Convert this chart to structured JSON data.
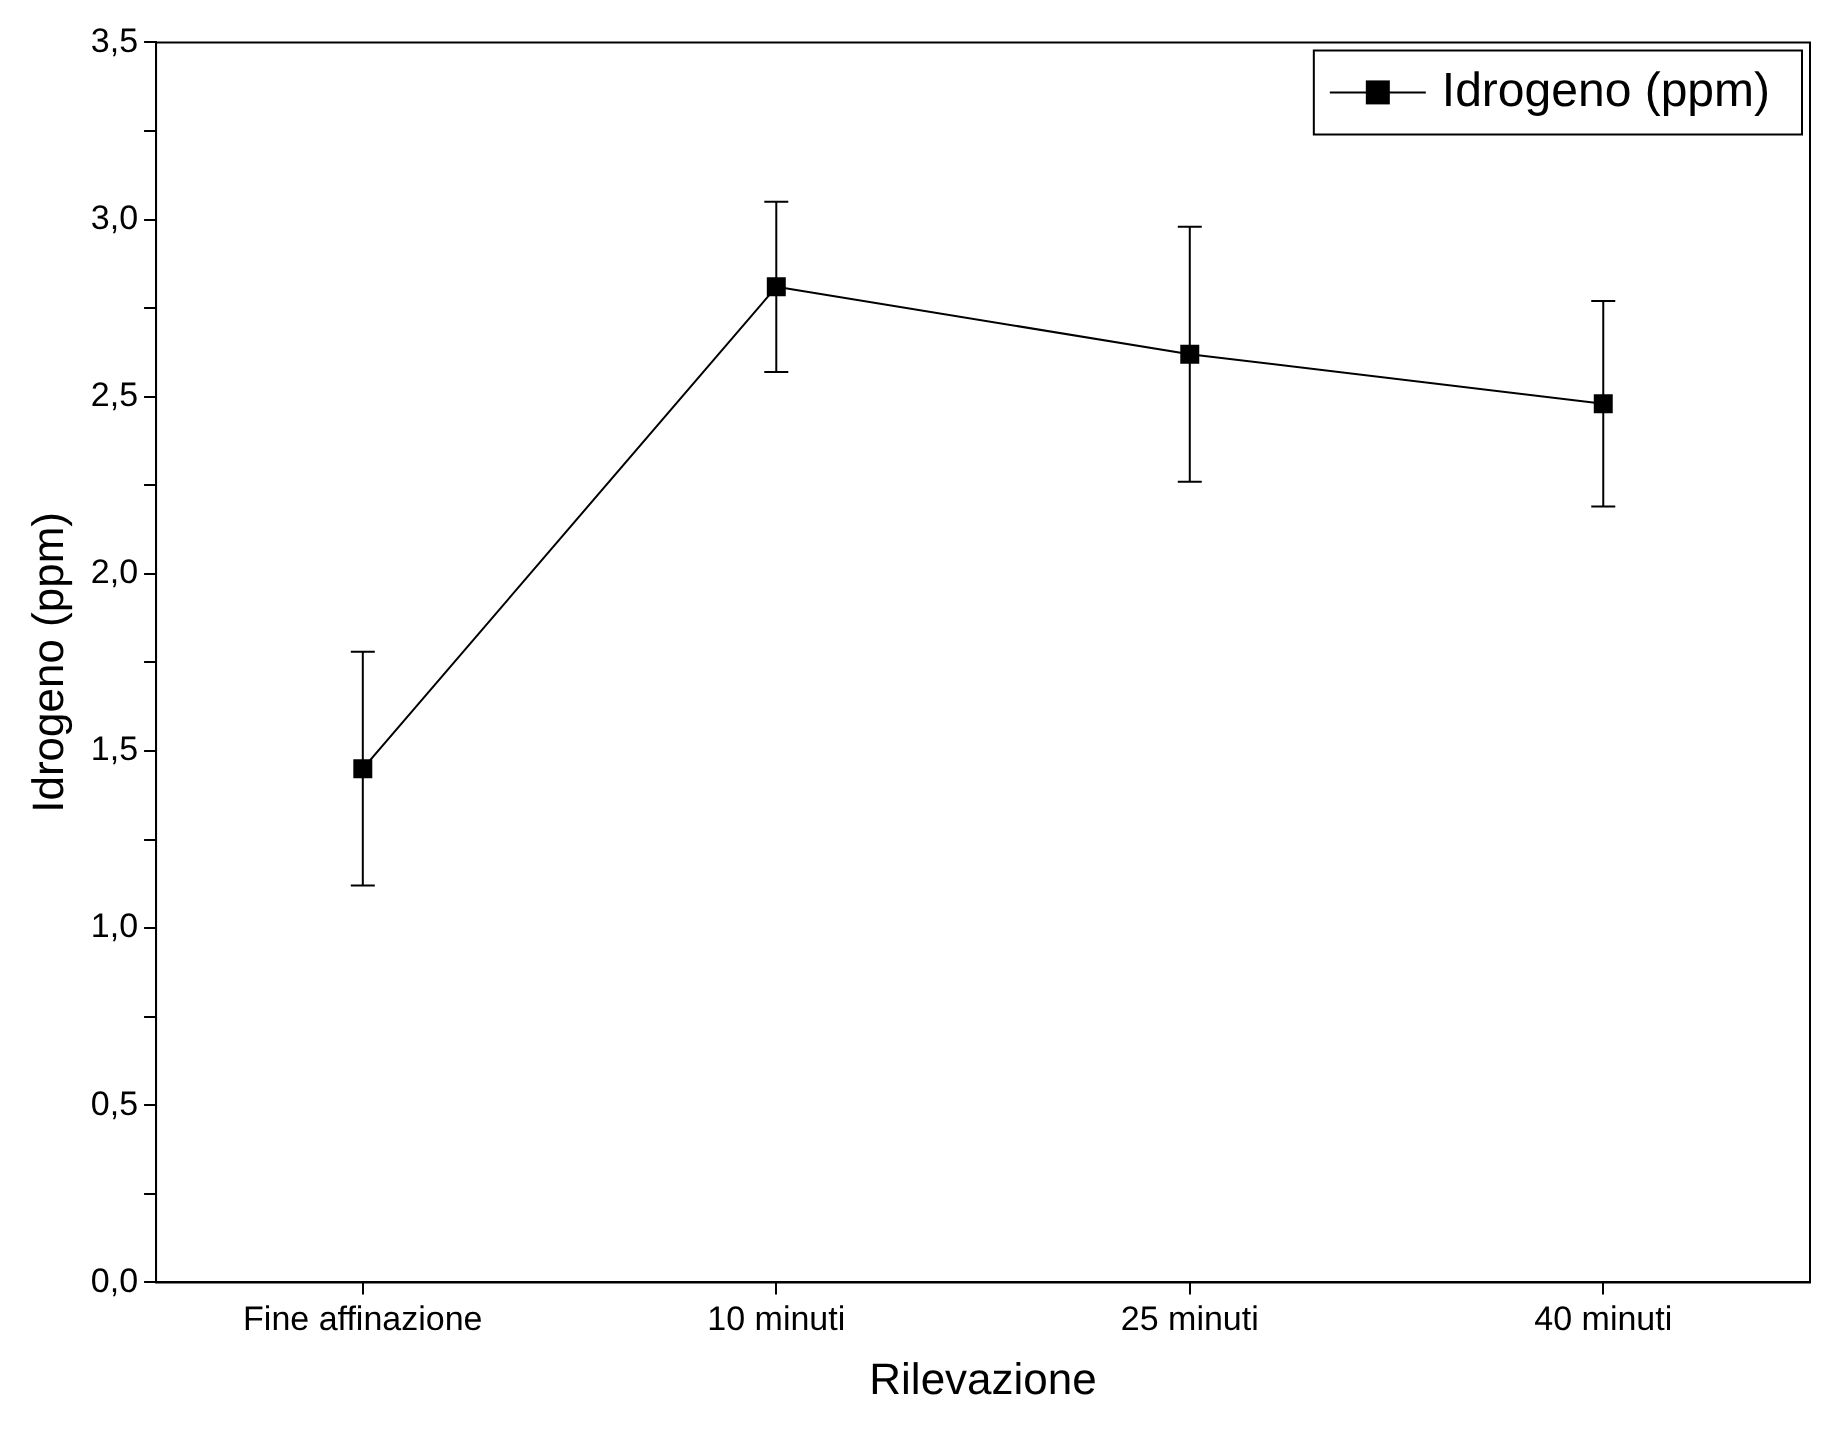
{
  "chart_data": {
    "type": "line",
    "xlabel": "Rilevazione",
    "ylabel": "Idrogeno (ppm)",
    "categories": [
      "Fine affinazione",
      "10 minuti",
      "25 minuti",
      "40 minuti"
    ],
    "series": [
      {
        "name": "Idrogeno (ppm)",
        "color": "#000000",
        "values": [
          1.45,
          2.81,
          2.62,
          2.48
        ],
        "errors": [
          0.33,
          0.24,
          0.36,
          0.29
        ]
      }
    ],
    "ylim": [
      0,
      3.5
    ],
    "yticks": [
      {
        "value": 0,
        "label": "0,0"
      },
      {
        "value": 0.25,
        "label": null
      },
      {
        "value": 0.5,
        "label": "0,5"
      },
      {
        "value": 0.75,
        "label": null
      },
      {
        "value": 1,
        "label": "1,0"
      },
      {
        "value": 1.25,
        "label": null
      },
      {
        "value": 1.5,
        "label": "1,5"
      },
      {
        "value": 1.75,
        "label": null
      },
      {
        "value": 2,
        "label": "2,0"
      },
      {
        "value": 2.25,
        "label": null
      },
      {
        "value": 2.5,
        "label": "2,5"
      },
      {
        "value": 2.75,
        "label": null
      },
      {
        "value": 3,
        "label": "3,0"
      },
      {
        "value": 3.25,
        "label": null
      },
      {
        "value": 3.5,
        "label": "3,5"
      }
    ],
    "grid": false,
    "legend": "top right",
    "marker": "square",
    "line_style": "solid"
  }
}
